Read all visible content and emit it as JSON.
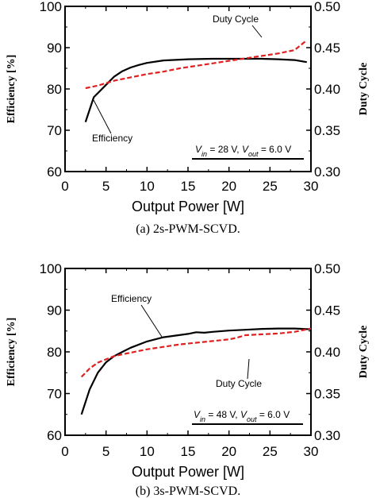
{
  "chart_data": [
    {
      "type": "line",
      "caption": "(a) 2s-PWM-SCVD.",
      "xlabel": "Output Power [W]",
      "ylabel_left": "Efficiency [%]",
      "ylabel_right": "Duty Cycle",
      "xlim": [
        0,
        30
      ],
      "ylim_left": [
        60,
        100
      ],
      "ylim_right": [
        0.3,
        0.5
      ],
      "x_ticks": [
        "0",
        "5",
        "10",
        "15",
        "20",
        "25",
        "30"
      ],
      "y_left_ticks": [
        "60",
        "70",
        "80",
        "90",
        "100"
      ],
      "y_right_ticks": [
        "0.30",
        "0.35",
        "0.40",
        "0.45",
        "0.50"
      ],
      "grid": false,
      "condition": {
        "vin_value": " = 28 V, ",
        "vout_value": " = 6.0 V"
      },
      "series": [
        {
          "name": "Efficiency",
          "axis": "left",
          "color": "#000000",
          "style": "solid",
          "x": [
            2.5,
            3.5,
            5,
            6,
            7,
            8,
            9,
            10,
            12,
            15,
            18,
            20,
            22,
            24,
            26,
            28,
            29.5
          ],
          "y": [
            72,
            78,
            81,
            83,
            84.3,
            85.2,
            85.8,
            86.3,
            86.9,
            87.2,
            87.3,
            87.3,
            87.3,
            87.3,
            87.2,
            87.0,
            86.5
          ]
        },
        {
          "name": "Duty Cycle",
          "axis": "right",
          "color": "#e02020",
          "style": "dashed",
          "x": [
            2.5,
            4,
            6,
            8,
            10,
            12,
            14,
            16,
            18,
            20,
            22,
            24,
            26,
            28,
            29.5
          ],
          "y": [
            0.401,
            0.404,
            0.41,
            0.414,
            0.418,
            0.421,
            0.425,
            0.428,
            0.431,
            0.434,
            0.437,
            0.44,
            0.443,
            0.447,
            0.459
          ]
        }
      ],
      "annotations": [
        "Duty Cycle",
        "Efficiency"
      ]
    },
    {
      "type": "line",
      "caption": "(b) 3s-PWM-SCVD.",
      "xlabel": "Output Power [W]",
      "ylabel_left": "Efficiency [%]",
      "ylabel_right": "Duty Cycle",
      "xlim": [
        0,
        30
      ],
      "ylim_left": [
        60,
        100
      ],
      "ylim_right": [
        0.3,
        0.5
      ],
      "x_ticks": [
        "0",
        "5",
        "10",
        "15",
        "20",
        "25",
        "30"
      ],
      "y_left_ticks": [
        "60",
        "70",
        "80",
        "90",
        "100"
      ],
      "y_right_ticks": [
        "0.30",
        "0.35",
        "0.40",
        "0.45",
        "0.50"
      ],
      "grid": false,
      "condition": {
        "vin_value": " = 48 V, ",
        "vout_value": " = 6.0 V"
      },
      "series": [
        {
          "name": "Efficiency",
          "axis": "left",
          "color": "#000000",
          "style": "solid",
          "x": [
            2,
            3,
            4,
            5,
            6,
            7,
            8,
            10,
            12,
            15,
            16,
            17,
            18,
            20,
            22,
            24,
            26,
            28,
            30
          ],
          "y": [
            65,
            71,
            75,
            77.5,
            79,
            80,
            81,
            82.5,
            83.5,
            84.3,
            84.7,
            84.6,
            84.8,
            85.1,
            85.3,
            85.5,
            85.6,
            85.6,
            85.4
          ]
        },
        {
          "name": "Duty Cycle",
          "axis": "right",
          "color": "#e02020",
          "style": "dashed",
          "x": [
            2,
            3,
            4,
            5,
            6,
            8,
            10,
            12,
            14,
            16,
            18,
            20,
            21,
            22,
            24,
            26,
            28,
            30
          ],
          "y": [
            0.37,
            0.38,
            0.387,
            0.391,
            0.395,
            0.399,
            0.403,
            0.406,
            0.409,
            0.411,
            0.413,
            0.415,
            0.417,
            0.42,
            0.421,
            0.422,
            0.424,
            0.428
          ]
        }
      ],
      "annotations": [
        "Efficiency",
        "Duty Cycle"
      ]
    }
  ]
}
